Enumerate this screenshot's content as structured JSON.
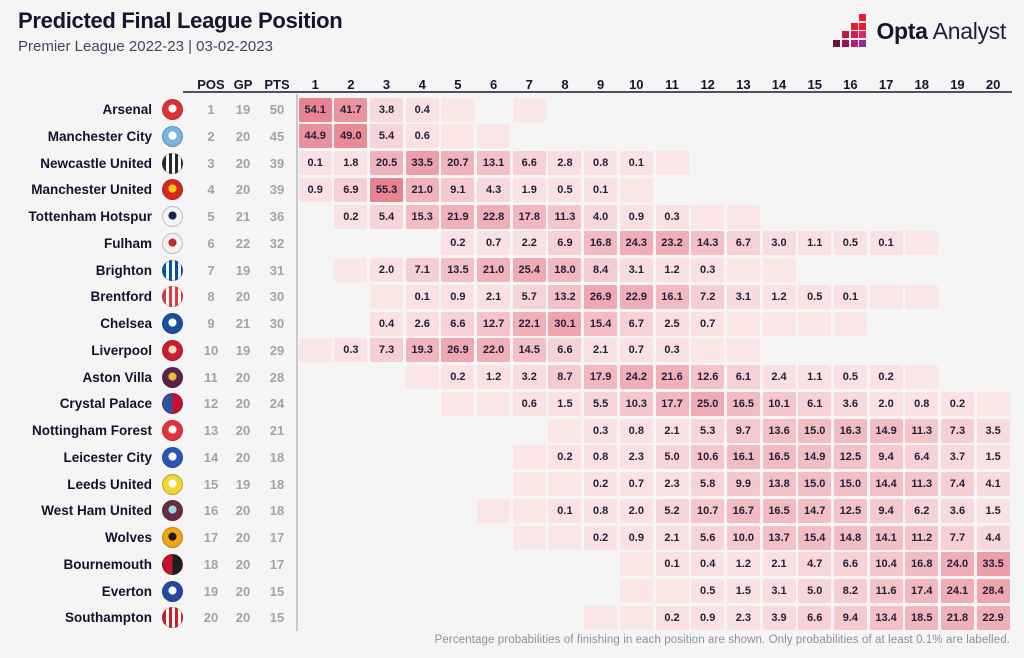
{
  "header": {
    "title": "Predicted Final League Position",
    "subtitle": "Premier League 2022-23 | 03-02-2023"
  },
  "brand": {
    "opta": "Opta",
    "analyst": "Analyst",
    "mark_squares": [
      [
        0,
        3,
        "#ed1b2f"
      ],
      [
        1,
        2,
        "#e41b33"
      ],
      [
        1,
        3,
        "#ed1b2f"
      ],
      [
        2,
        1,
        "#bc1b40"
      ],
      [
        2,
        2,
        "#d11d51"
      ],
      [
        2,
        3,
        "#dd2a6e"
      ],
      [
        3,
        0,
        "#6e1430"
      ],
      [
        3,
        1,
        "#98164a"
      ],
      [
        3,
        2,
        "#b81f7a"
      ],
      [
        3,
        3,
        "#8f2c9e"
      ]
    ]
  },
  "footer": {
    "note": "Percentage probabilities of finishing in each position are shown. Only probabilities of at least 0.1% are labelled."
  },
  "chart_data": {
    "type": "heatmap",
    "title": "Predicted Final League Position",
    "subtitle": "Premier League 2022-23 | 03-02-2023",
    "stat_columns": [
      "POS",
      "GP",
      "PTS"
    ],
    "position_columns": [
      1,
      2,
      3,
      4,
      5,
      6,
      7,
      8,
      9,
      10,
      11,
      12,
      13,
      14,
      15,
      16,
      17,
      18,
      19,
      20
    ],
    "value_unit": "percent probability",
    "color_scale": {
      "low": "#fcf1f2",
      "high": "#e8828f",
      "domain_max": 56
    },
    "note": "Percentage probabilities of finishing in each position are shown. Only probabilities of at least 0.1% are labelled.",
    "teams": [
      {
        "name": "Arsenal",
        "pos": 1,
        "gp": 19,
        "pts": 50,
        "badge": {
          "type": "solid",
          "colors": [
            "#e13030",
            "#ffffff"
          ]
        },
        "probs": {
          "1": 54.1,
          "2": 41.7,
          "3": 3.8,
          "4": 0.4
        },
        "trace_cols": [
          5,
          7
        ]
      },
      {
        "name": "Manchester City",
        "pos": 2,
        "gp": 20,
        "pts": 45,
        "badge": {
          "type": "solid",
          "colors": [
            "#79b5e2",
            "#ffffff"
          ]
        },
        "probs": {
          "1": 44.9,
          "2": 49.0,
          "3": 5.4,
          "4": 0.6
        },
        "trace_cols": [
          5,
          6
        ]
      },
      {
        "name": "Newcastle United",
        "pos": 3,
        "gp": 20,
        "pts": 39,
        "badge": {
          "type": "stripes",
          "colors": [
            "#26262b",
            "#ffffff"
          ]
        },
        "probs": {
          "1": 0.1,
          "2": 1.8,
          "3": 20.5,
          "4": 33.5,
          "5": 20.7,
          "6": 13.1,
          "7": 6.6,
          "8": 2.8,
          "9": 0.8,
          "10": 0.1
        },
        "trace_cols": [
          11
        ]
      },
      {
        "name": "Manchester United",
        "pos": 4,
        "gp": 20,
        "pts": 39,
        "badge": {
          "type": "solid",
          "colors": [
            "#d6281e",
            "#f3c918"
          ]
        },
        "probs": {
          "1": 0.9,
          "2": 6.9,
          "3": 55.3,
          "4": 21.0,
          "5": 9.1,
          "6": 4.3,
          "7": 1.9,
          "8": 0.5,
          "9": 0.1
        },
        "trace_cols": [
          10
        ]
      },
      {
        "name": "Tottenham Hotspur",
        "pos": 5,
        "gp": 21,
        "pts": 36,
        "badge": {
          "type": "solid",
          "colors": [
            "#f4f4f8",
            "#1b2453"
          ]
        },
        "probs": {
          "2": 0.2,
          "3": 5.4,
          "4": 15.3,
          "5": 21.9,
          "6": 22.8,
          "7": 17.8,
          "8": 11.3,
          "9": 4.0,
          "10": 0.9,
          "11": 0.3
        },
        "trace_cols": [
          12,
          13
        ]
      },
      {
        "name": "Fulham",
        "pos": 6,
        "gp": 22,
        "pts": 32,
        "badge": {
          "type": "solid",
          "colors": [
            "#f2f2f2",
            "#c42b2b"
          ]
        },
        "probs": {
          "5": 0.2,
          "6": 0.7,
          "7": 2.2,
          "8": 6.9,
          "9": 16.8,
          "10": 24.3,
          "11": 23.2,
          "12": 14.3,
          "13": 6.7,
          "14": 3.0,
          "15": 1.1,
          "16": 0.5,
          "17": 0.1
        },
        "trace_cols": [
          18
        ]
      },
      {
        "name": "Brighton",
        "pos": 7,
        "gp": 19,
        "pts": 31,
        "badge": {
          "type": "stripes",
          "colors": [
            "#0054a6",
            "#ffffff"
          ]
        },
        "probs": {
          "3": 2.0,
          "4": 7.1,
          "5": 13.5,
          "6": 21.0,
          "7": 25.4,
          "8": 18.0,
          "9": 8.4,
          "10": 3.1,
          "11": 1.2,
          "12": 0.3
        },
        "trace_cols": [
          2,
          13,
          14
        ]
      },
      {
        "name": "Brentford",
        "pos": 8,
        "gp": 20,
        "pts": 30,
        "badge": {
          "type": "stripes",
          "colors": [
            "#e23b3b",
            "#ffffff"
          ]
        },
        "probs": {
          "4": 0.1,
          "5": 0.9,
          "6": 2.1,
          "7": 5.7,
          "8": 13.2,
          "9": 26.9,
          "10": 22.9,
          "11": 16.1,
          "12": 7.2,
          "13": 3.1,
          "14": 1.2,
          "15": 0.5,
          "16": 0.1
        },
        "trace_cols": [
          3,
          17,
          18
        ]
      },
      {
        "name": "Chelsea",
        "pos": 9,
        "gp": 21,
        "pts": 30,
        "badge": {
          "type": "solid",
          "colors": [
            "#1a4fa0",
            "#ffffff"
          ]
        },
        "probs": {
          "3": 0.4,
          "4": 2.6,
          "5": 6.6,
          "6": 12.7,
          "7": 22.1,
          "8": 30.1,
          "9": 15.4,
          "10": 6.7,
          "11": 2.5,
          "12": 0.7
        },
        "trace_cols": [
          13,
          14,
          15,
          16
        ]
      },
      {
        "name": "Liverpool",
        "pos": 10,
        "gp": 19,
        "pts": 29,
        "badge": {
          "type": "solid",
          "colors": [
            "#d01b2c",
            "#ecdcb9"
          ]
        },
        "probs": {
          "2": 0.3,
          "3": 7.3,
          "4": 19.3,
          "5": 26.9,
          "6": 22.0,
          "7": 14.5,
          "8": 6.6,
          "9": 2.1,
          "10": 0.7,
          "11": 0.3
        },
        "trace_cols": [
          1,
          12,
          13
        ]
      },
      {
        "name": "Aston Villa",
        "pos": 11,
        "gp": 20,
        "pts": 28,
        "badge": {
          "type": "solid",
          "colors": [
            "#5f2247",
            "#e3c33f"
          ]
        },
        "probs": {
          "5": 0.2,
          "6": 1.2,
          "7": 3.2,
          "8": 8.7,
          "9": 17.9,
          "10": 24.2,
          "11": 21.6,
          "12": 12.6,
          "13": 6.1,
          "14": 2.4,
          "15": 1.1,
          "16": 0.5,
          "17": 0.2
        },
        "trace_cols": [
          4,
          18
        ]
      },
      {
        "name": "Crystal Palace",
        "pos": 12,
        "gp": 20,
        "pts": 24,
        "badge": {
          "type": "half",
          "colors": [
            "#2d53a0",
            "#c8102e"
          ]
        },
        "probs": {
          "7": 0.6,
          "8": 1.5,
          "9": 5.5,
          "10": 10.3,
          "11": 17.7,
          "12": 25.0,
          "13": 16.5,
          "14": 10.1,
          "15": 6.1,
          "16": 3.6,
          "17": 2.0,
          "18": 0.8,
          "19": 0.2
        },
        "trace_cols": [
          5,
          6,
          20
        ]
      },
      {
        "name": "Nottingham Forest",
        "pos": 13,
        "gp": 20,
        "pts": 21,
        "badge": {
          "type": "solid",
          "colors": [
            "#e53238",
            "#ffffff"
          ]
        },
        "probs": {
          "9": 0.3,
          "10": 0.8,
          "11": 2.1,
          "12": 5.3,
          "13": 9.7,
          "14": 13.6,
          "15": 15.0,
          "16": 16.3,
          "17": 14.9,
          "18": 11.3,
          "19": 7.3,
          "20": 3.5
        },
        "trace_cols": [
          8
        ]
      },
      {
        "name": "Leicester City",
        "pos": 14,
        "gp": 20,
        "pts": 18,
        "badge": {
          "type": "solid",
          "colors": [
            "#2b55b0",
            "#ffffff"
          ]
        },
        "probs": {
          "8": 0.2,
          "9": 0.8,
          "10": 2.3,
          "11": 5.0,
          "12": 10.6,
          "13": 16.1,
          "14": 16.5,
          "15": 14.9,
          "16": 12.5,
          "17": 9.4,
          "18": 6.4,
          "19": 3.7,
          "20": 1.5
        },
        "trace_cols": [
          7
        ]
      },
      {
        "name": "Leeds United",
        "pos": 15,
        "gp": 19,
        "pts": 18,
        "badge": {
          "type": "solid",
          "colors": [
            "#f3d430",
            "#ffffff"
          ]
        },
        "probs": {
          "9": 0.2,
          "10": 0.7,
          "11": 2.3,
          "12": 5.8,
          "13": 9.9,
          "14": 13.8,
          "15": 15.0,
          "16": 15.0,
          "17": 14.4,
          "18": 11.3,
          "19": 7.4,
          "20": 4.1
        },
        "trace_cols": [
          7,
          8
        ]
      },
      {
        "name": "West Ham United",
        "pos": 16,
        "gp": 20,
        "pts": 18,
        "badge": {
          "type": "solid",
          "colors": [
            "#6b2c3e",
            "#9bd3f0"
          ]
        },
        "probs": {
          "8": 0.1,
          "9": 0.8,
          "10": 2.0,
          "11": 5.2,
          "12": 10.7,
          "13": 16.7,
          "14": 16.5,
          "15": 14.7,
          "16": 12.5,
          "17": 9.4,
          "18": 6.2,
          "19": 3.6,
          "20": 1.5
        },
        "trace_cols": [
          6,
          7
        ]
      },
      {
        "name": "Wolves",
        "pos": 17,
        "gp": 20,
        "pts": 17,
        "badge": {
          "type": "solid",
          "colors": [
            "#f2a415",
            "#1a1a1a"
          ]
        },
        "probs": {
          "9": 0.2,
          "10": 0.9,
          "11": 2.1,
          "12": 5.6,
          "13": 10.0,
          "14": 13.7,
          "15": 15.4,
          "16": 14.8,
          "17": 14.1,
          "18": 11.2,
          "19": 7.7,
          "20": 4.4
        },
        "trace_cols": [
          7,
          8
        ]
      },
      {
        "name": "Bournemouth",
        "pos": 18,
        "gp": 20,
        "pts": 17,
        "badge": {
          "type": "half",
          "colors": [
            "#c8102e",
            "#1f1f1f"
          ]
        },
        "probs": {
          "11": 0.1,
          "12": 0.4,
          "13": 1.2,
          "14": 2.1,
          "15": 4.7,
          "16": 6.6,
          "17": 10.4,
          "18": 16.8,
          "19": 24.0,
          "20": 33.5
        },
        "trace_cols": [
          10
        ]
      },
      {
        "name": "Everton",
        "pos": 19,
        "gp": 20,
        "pts": 15,
        "badge": {
          "type": "solid",
          "colors": [
            "#2447a0",
            "#ffffff"
          ]
        },
        "probs": {
          "12": 0.5,
          "13": 1.5,
          "14": 3.1,
          "15": 5.0,
          "16": 8.2,
          "17": 11.6,
          "18": 17.4,
          "19": 24.1,
          "20": 28.4
        },
        "trace_cols": [
          10,
          11
        ]
      },
      {
        "name": "Southampton",
        "pos": 20,
        "gp": 20,
        "pts": 15,
        "badge": {
          "type": "stripes",
          "colors": [
            "#d71920",
            "#ffffff"
          ]
        },
        "probs": {
          "11": 0.2,
          "12": 0.9,
          "13": 2.3,
          "14": 3.9,
          "15": 6.6,
          "16": 9.4,
          "17": 13.4,
          "18": 18.5,
          "19": 21.8,
          "20": 22.9
        },
        "trace_cols": [
          9,
          10
        ]
      }
    ]
  }
}
